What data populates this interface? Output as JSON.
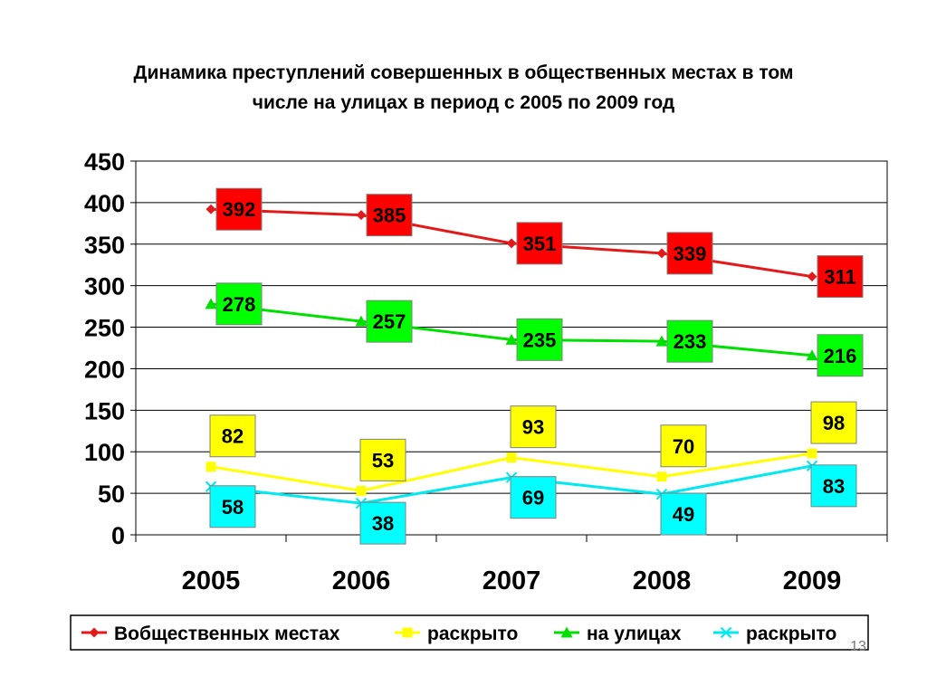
{
  "chart_data": {
    "type": "line",
    "title_lines": [
      "Динамика преступлений совершенных в общественных местах в том",
      "числе на улицах в период с 2005 по 2009 год"
    ],
    "categories": [
      "2005",
      "2006",
      "2007",
      "2008",
      "2009"
    ],
    "ylim": [
      0,
      450
    ],
    "yticks": [
      0,
      50,
      100,
      150,
      200,
      250,
      300,
      350,
      400,
      450
    ],
    "grid": true,
    "legend_position": "bottom",
    "series": [
      {
        "name": "Вобщественных местах",
        "marker": "diamond",
        "color": "#e31a1c",
        "label_bg": "#ff0000",
        "values": [
          392,
          385,
          351,
          339,
          311
        ]
      },
      {
        "name": "раскрыто",
        "marker": "square",
        "color": "#ffff00",
        "label_bg": "#ffff00",
        "values": [
          82,
          53,
          93,
          70,
          98
        ]
      },
      {
        "name": "на улицах",
        "marker": "triangle",
        "color": "#00e000",
        "label_bg": "#00ff00",
        "values": [
          278,
          257,
          235,
          233,
          216
        ]
      },
      {
        "name": "раскрыто",
        "marker": "x",
        "color": "#00e8f0",
        "label_bg": "#00ffff",
        "values": [
          58,
          38,
          69,
          49,
          83
        ]
      }
    ]
  },
  "slide_number": "13"
}
